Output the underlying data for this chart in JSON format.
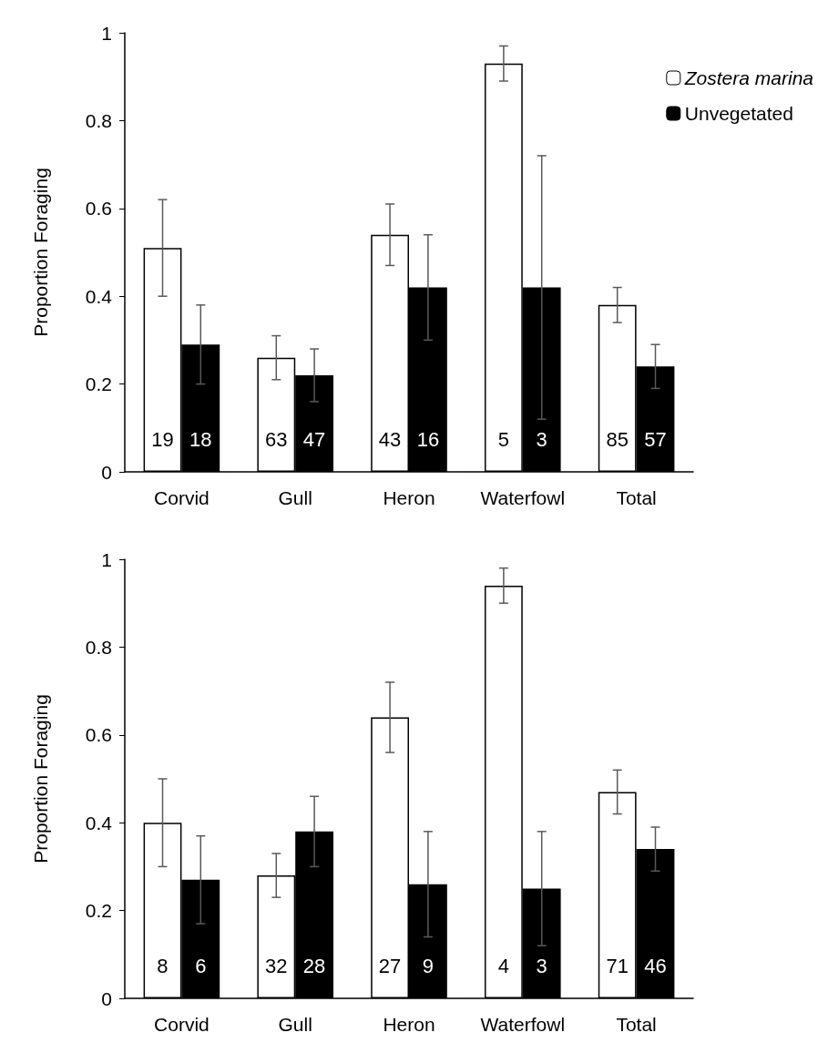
{
  "chart_data": [
    {
      "type": "bar",
      "ylabel": "Proportion Foraging",
      "categories": [
        "Corvid",
        "Gull",
        "Heron",
        "Waterfowl",
        "Total"
      ],
      "ylim": [
        0,
        1
      ],
      "yticks": [
        0,
        0.2,
        0.4,
        0.6,
        0.8,
        1
      ],
      "grid": false,
      "legend": "top right",
      "series": [
        {
          "name": "Zostera marina",
          "color": "#ffffff",
          "values": [
            0.51,
            0.26,
            0.54,
            0.93,
            0.38
          ],
          "errors": [
            0.11,
            0.05,
            0.07,
            0.04,
            0.04
          ]
        },
        {
          "name": "Unvegetated",
          "color": "#000000",
          "values": [
            0.29,
            0.22,
            0.42,
            0.42,
            0.24
          ],
          "errors": [
            0.09,
            0.06,
            0.12,
            0.3,
            0.05
          ]
        }
      ],
      "annotations": [
        {
          "text": "19",
          "x": "Corvid",
          "y": 0.05
        },
        {
          "text": "18",
          "x": "Corvid",
          "y": 0.05
        },
        {
          "text": "63",
          "x": "Gull",
          "y": 0.05
        },
        {
          "text": "47",
          "x": "Gull",
          "y": 0.05
        },
        {
          "text": "43",
          "x": "Heron",
          "y": 0.05
        },
        {
          "text": "16",
          "x": "Heron",
          "y": 0.05
        },
        {
          "text": "5",
          "x": "Waterfowl",
          "y": 0.05
        },
        {
          "text": "3",
          "x": "Waterfowl",
          "y": 0.05
        },
        {
          "text": "85",
          "x": "Total",
          "y": 0.05
        },
        {
          "text": "57",
          "x": "Total",
          "y": 0.05
        }
      ]
    },
    {
      "type": "bar",
      "ylabel": "Proportion Foraging",
      "categories": [
        "Corvid",
        "Gull",
        "Heron",
        "Waterfowl",
        "Total"
      ],
      "ylim": [
        0,
        1
      ],
      "yticks": [
        0,
        0.2,
        0.4,
        0.6,
        0.8,
        1
      ],
      "grid": false,
      "legend": false,
      "series": [
        {
          "color": "#ffffff",
          "values": [
            0.4,
            0.28,
            0.64,
            0.94,
            0.47
          ],
          "errors": [
            0.1,
            0.05,
            0.08,
            0.04,
            0.05
          ]
        },
        {
          "color": "#000000",
          "values": [
            0.27,
            0.38,
            0.26,
            0.25,
            0.34
          ],
          "errors": [
            0.1,
            0.08,
            0.12,
            0.13,
            0.05
          ]
        }
      ],
      "annotations": [
        {
          "text": "8",
          "x": "Corvid",
          "y": 0.05
        },
        {
          "text": "6",
          "x": "Corvid",
          "y": 0.05
        },
        {
          "text": "32",
          "x": "Gull",
          "y": 0.05
        },
        {
          "text": "28",
          "x": "Gull",
          "y": 0.05
        },
        {
          "text": "27",
          "x": "Heron",
          "y": 0.05
        },
        {
          "text": "9",
          "x": "Heron",
          "y": 0.05
        },
        {
          "text": "4",
          "x": "Waterfowl",
          "y": 0.05
        },
        {
          "text": "3",
          "x": "Waterfowl",
          "y": 0.05
        },
        {
          "text": "71",
          "x": "Total",
          "y": 0.05
        },
        {
          "text": "46",
          "x": "Total",
          "y": 0.05
        }
      ]
    }
  ]
}
